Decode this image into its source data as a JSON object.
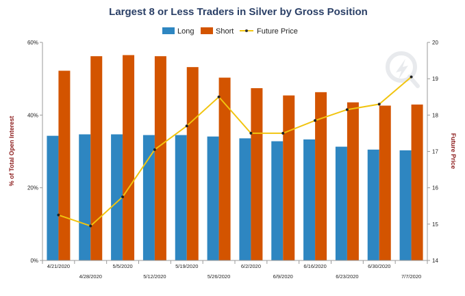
{
  "chart_data": {
    "type": "bar",
    "title": "Largest 8 or Less Traders in Silver by Gross Position",
    "categories": [
      "4/21/2020",
      "4/28/2020",
      "5/5/2020",
      "5/12/2020",
      "5/19/2020",
      "5/26/2020",
      "6/2/2020",
      "6/9/2020",
      "6/16/2020",
      "6/23/2020",
      "6/30/2020",
      "7/7/2020"
    ],
    "series": [
      {
        "name": "Long",
        "axis": "left",
        "kind": "bar",
        "color": "#2e86c1",
        "values": [
          34.3,
          34.7,
          34.7,
          34.5,
          34.5,
          34.1,
          33.6,
          32.8,
          33.3,
          31.3,
          30.5,
          30.3
        ]
      },
      {
        "name": "Short",
        "axis": "left",
        "kind": "bar",
        "color": "#d35400",
        "values": [
          52.2,
          56.2,
          56.5,
          56.2,
          53.2,
          50.3,
          47.4,
          45.4,
          46.3,
          43.5,
          42.6,
          42.9
        ]
      },
      {
        "name": "Future Price",
        "axis": "right",
        "kind": "line",
        "color": "#f1c40f",
        "values": [
          15.25,
          14.95,
          15.75,
          17.05,
          17.7,
          18.5,
          17.5,
          17.5,
          17.85,
          18.15,
          18.3,
          19.05
        ]
      }
    ],
    "ylabel": "% of Total Open Interest",
    "y2label": "Future Price",
    "ylim": [
      0,
      60
    ],
    "yticks": [
      "0%",
      "20%",
      "40%",
      "60%"
    ],
    "y2lim": [
      14,
      20
    ],
    "y2ticks": [
      "14",
      "15",
      "16",
      "17",
      "18",
      "19",
      "20"
    ],
    "legend": "top-center",
    "grid": false
  }
}
